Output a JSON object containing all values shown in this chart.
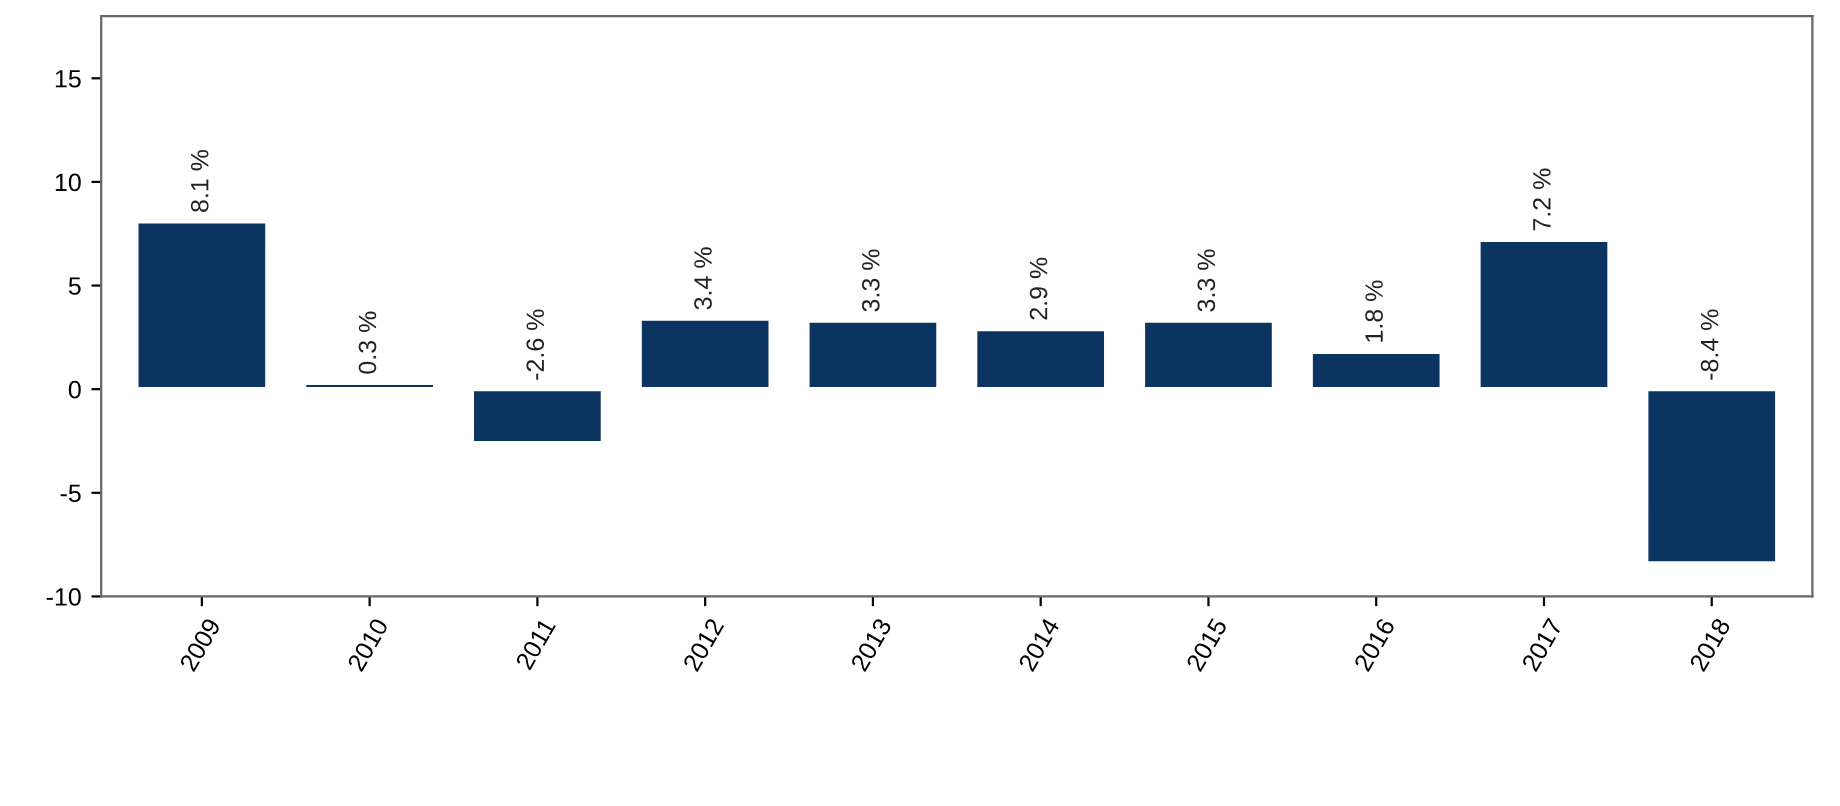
{
  "chart_data": {
    "type": "bar",
    "categories": [
      "2009",
      "2010",
      "2011",
      "2012",
      "2013",
      "2014",
      "2015",
      "2016",
      "2017",
      "2018"
    ],
    "series": [
      {
        "color": "#0b3461",
        "values": [
          8.1,
          0.3,
          -2.6,
          3.4,
          3.3,
          2.9,
          3.3,
          1.8,
          7.2,
          -8.4
        ],
        "value_labels": [
          "8.1 %",
          "0.3 %",
          "-2.6 %",
          "3.4 %",
          "3.3 %",
          "2.9 %",
          "3.3 %",
          "1.8 %",
          "7.2 %",
          "-8.4 %"
        ]
      }
    ],
    "ylim": [
      -10,
      18
    ],
    "yticks": [
      -10,
      -5,
      0,
      5,
      10,
      15
    ],
    "grid": false
  }
}
